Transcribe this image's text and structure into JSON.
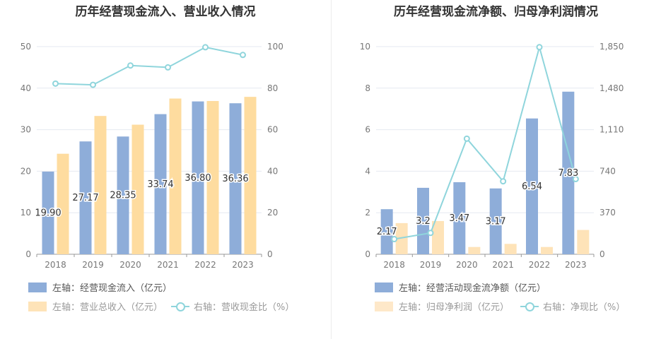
{
  "chart_data": [
    {
      "type": "bar",
      "title": "历年经营现金流入、营业收入情况",
      "categories": [
        "2018",
        "2019",
        "2020",
        "2021",
        "2022",
        "2023"
      ],
      "y_left_ticks": [
        "0",
        "10",
        "20",
        "30",
        "40",
        "50"
      ],
      "y_right_ticks": [
        "0",
        "20",
        "40",
        "60",
        "80",
        "100"
      ],
      "ylim_left": [
        0,
        50
      ],
      "ylim_right": [
        0,
        100
      ],
      "grid": true,
      "legend_position": "bottom",
      "series": [
        {
          "name": "左轴：经营现金流入（亿元）",
          "kind": "bar",
          "axis": "left",
          "color": "#8eadd9",
          "values": [
            19.9,
            27.17,
            28.35,
            33.74,
            36.8,
            36.36
          ],
          "labels": [
            "19.90",
            "27.17",
            "28.35",
            "33.74",
            "36.80",
            "36.36"
          ]
        },
        {
          "name": "左轴：营业总收入（亿元）",
          "kind": "bar",
          "axis": "left",
          "color": "#fedc9f",
          "values": [
            24.2,
            33.3,
            31.2,
            37.5,
            36.9,
            37.9
          ]
        },
        {
          "name": "右轴：营收现金比（%）",
          "kind": "line",
          "axis": "right",
          "color": "#8fd5dc",
          "values": [
            82.2,
            81.6,
            90.9,
            90.0,
            99.7,
            96.0
          ]
        }
      ]
    },
    {
      "type": "bar",
      "title": "历年经营现金流净额、归母净利润情况",
      "categories": [
        "2018",
        "2019",
        "2020",
        "2021",
        "2022",
        "2023"
      ],
      "y_left_ticks": [
        "0",
        "2",
        "4",
        "6",
        "8",
        "10"
      ],
      "y_right_ticks": [
        "0",
        "370",
        "740",
        "1,110",
        "1,480",
        "1,850"
      ],
      "ylim_left": [
        0,
        10
      ],
      "ylim_right": [
        0,
        1850
      ],
      "grid": true,
      "legend_position": "bottom",
      "series": [
        {
          "name": "左轴：经营活动现金流净额（亿元）",
          "kind": "bar",
          "axis": "left",
          "color": "#8eadd9",
          "values": [
            2.17,
            3.2,
            3.47,
            3.17,
            6.54,
            7.83
          ],
          "labels": [
            "2.17",
            "3.2",
            "3.47",
            "3.17",
            "6.54",
            "7.83"
          ]
        },
        {
          "name": "左轴：归母净利润（亿元）",
          "kind": "bar",
          "axis": "left",
          "color": "#fee3b8",
          "values": [
            1.5,
            1.6,
            0.35,
            0.5,
            0.35,
            1.17
          ]
        },
        {
          "name": "右轴：净现比（%）",
          "kind": "line",
          "axis": "right",
          "color": "#8fd5dc",
          "values": [
            135,
            190,
            1030,
            650,
            1845,
            670
          ]
        }
      ]
    }
  ]
}
